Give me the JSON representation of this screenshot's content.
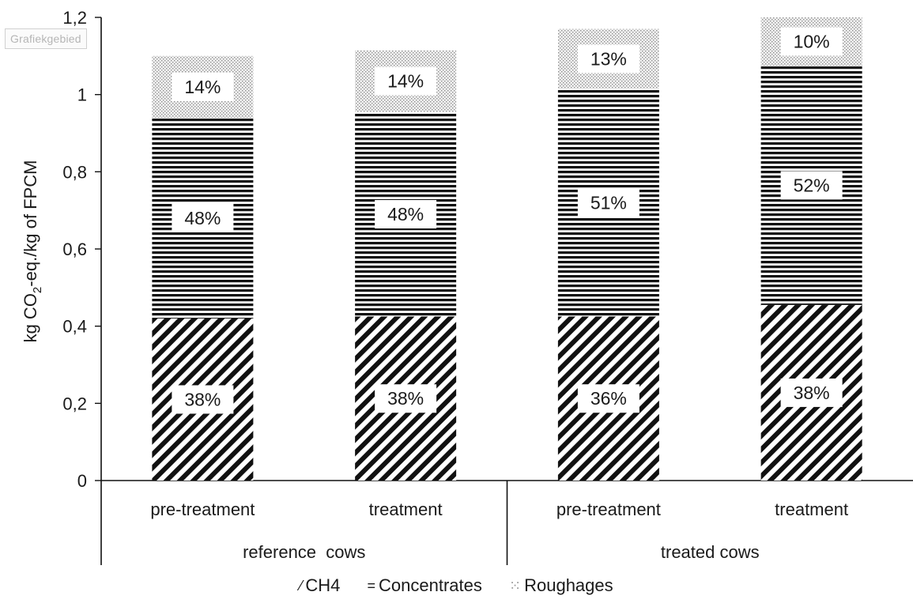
{
  "plot_area_tag": "Grafiekgebied",
  "chart_data": {
    "type": "bar",
    "stacked": true,
    "categories": [
      "pre-treatment",
      "treatment",
      "pre-treatment",
      "treatment"
    ],
    "groups": [
      {
        "label": "reference  cows",
        "categories": [
          0,
          1
        ]
      },
      {
        "label": "treated cows",
        "categories": [
          2,
          3
        ]
      }
    ],
    "series": [
      {
        "name": "CH4",
        "pattern": "diagonal-hatch",
        "values": [
          0.42,
          0.425,
          0.425,
          0.455
        ],
        "labels": [
          "38%",
          "38%",
          "36%",
          "38%"
        ]
      },
      {
        "name": "Concentrates",
        "pattern": "horizontal-lines",
        "values": [
          0.52,
          0.53,
          0.59,
          0.62
        ],
        "labels": [
          "48%",
          "48%",
          "51%",
          "52%"
        ]
      },
      {
        "name": "Roughages",
        "pattern": "dots",
        "values": [
          0.16,
          0.16,
          0.155,
          0.125
        ],
        "labels": [
          "14%",
          "14%",
          "13%",
          "10%"
        ]
      }
    ],
    "ylabel_parts": [
      "kg CO",
      "2",
      "-eq./kg of FPCM"
    ],
    "ylim": [
      0,
      1.2
    ],
    "yticks": [
      "0",
      "0,2",
      "0,4",
      "0,6",
      "0,8",
      "1",
      "1,2"
    ],
    "grid": false,
    "legend_position": "bottom",
    "colors": {
      "ink": "#111111",
      "background": "#ffffff"
    }
  },
  "legend": [
    {
      "swatch": "⁄",
      "label": "CH4"
    },
    {
      "swatch": "=",
      "label": "Concentrates"
    },
    {
      "swatch": "⁙",
      "label": "Roughages"
    }
  ]
}
